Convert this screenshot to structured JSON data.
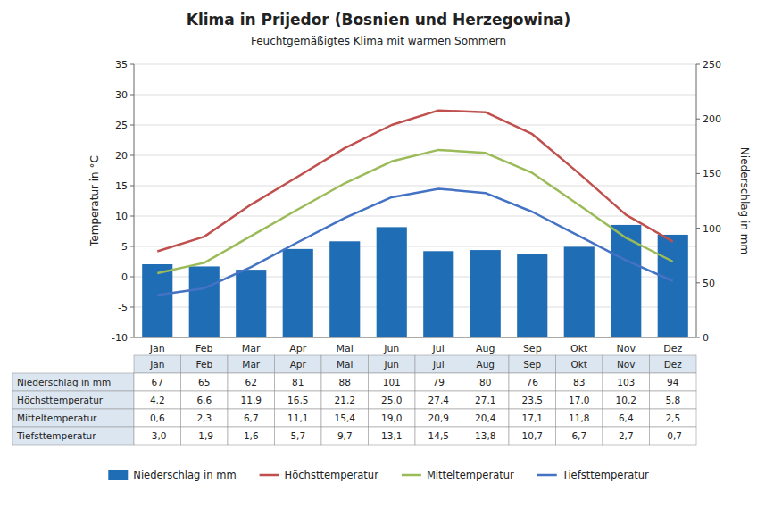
{
  "chart_data": {
    "type": "bar",
    "title": "Klima in Prijedor (Bosnien und Herzegowina)",
    "subtitle": "Feuchtgemäßigtes Klima mit warmen Sommern",
    "categories": [
      "Jan",
      "Feb",
      "Mar",
      "Apr",
      "Mai",
      "Jun",
      "Jul",
      "Aug",
      "Sep",
      "Okt",
      "Nov",
      "Dez"
    ],
    "series": [
      {
        "name": "Niederschlag in mm",
        "type": "bar",
        "axis": "y2",
        "color": "#1F6DB5",
        "values": [
          67,
          65,
          62,
          81,
          88,
          101,
          79,
          80,
          76,
          83,
          103,
          94
        ]
      },
      {
        "name": "Höchsttemperatur",
        "type": "line",
        "color": "#C0504D",
        "values": [
          4.2,
          6.6,
          11.9,
          16.5,
          21.2,
          25.0,
          27.4,
          27.1,
          23.5,
          17.0,
          10.2,
          5.8
        ],
        "value_labels": [
          "4,2",
          "6,6",
          "11,9",
          "16,5",
          "21,2",
          "25,0",
          "27,4",
          "27,1",
          "23,5",
          "17,0",
          "10,2",
          "5,8"
        ]
      },
      {
        "name": "Mitteltemperatur",
        "type": "line",
        "color": "#9BBB59",
        "values": [
          0.6,
          2.3,
          6.7,
          11.1,
          15.4,
          19.0,
          20.9,
          20.4,
          17.1,
          11.8,
          6.4,
          2.5
        ],
        "value_labels": [
          "0,6",
          "2,3",
          "6,7",
          "11,1",
          "15,4",
          "19,0",
          "20,9",
          "20,4",
          "17,1",
          "11,8",
          "6,4",
          "2,5"
        ]
      },
      {
        "name": "Tiefsttemperatur",
        "type": "line",
        "color": "#4472C4",
        "values": [
          -3.0,
          -1.9,
          1.6,
          5.7,
          9.7,
          13.1,
          14.5,
          13.8,
          10.7,
          6.7,
          2.7,
          -0.7
        ],
        "value_labels": [
          "-3,0",
          "-1,9",
          "1,6",
          "5,7",
          "9,7",
          "13,1",
          "14,5",
          "13,8",
          "10,7",
          "6,7",
          "2,7",
          "-0,7"
        ]
      }
    ],
    "y_label": "Temperatur in °C",
    "y2_label": "Niederschlag in mm",
    "ylim": [
      -10,
      35
    ],
    "yticks": [
      -10,
      -5,
      0,
      5,
      10,
      15,
      20,
      25,
      30,
      35
    ],
    "y2lim": [
      0,
      250
    ],
    "y2ticks": [
      0,
      50,
      100,
      150,
      200,
      250
    ],
    "grid": true,
    "legend": "bottom"
  }
}
